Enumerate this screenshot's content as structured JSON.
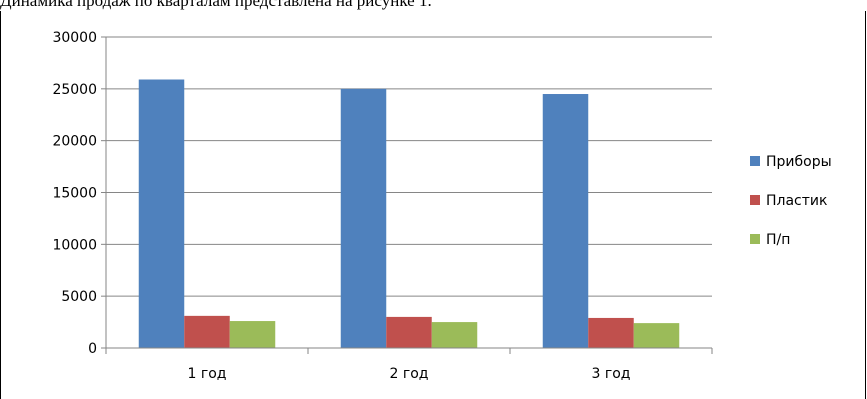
{
  "caption": "Динамика продаж по кварталам представлена на рисунке 1.",
  "chart_data": {
    "type": "bar",
    "title": "",
    "xlabel": "",
    "ylabel": "",
    "categories": [
      "1 год",
      "2 год",
      "3 год"
    ],
    "series": [
      {
        "name": "Приборы",
        "color": "#4F81BD",
        "values": [
          25900,
          25000,
          24500
        ]
      },
      {
        "name": "Пластик",
        "color": "#C0504D",
        "values": [
          3100,
          3000,
          2900
        ]
      },
      {
        "name": "П/п",
        "color": "#9BBB59",
        "values": [
          2600,
          2500,
          2400
        ]
      }
    ],
    "ylim": [
      0,
      30000
    ],
    "yticks": [
      0,
      5000,
      10000,
      15000,
      20000,
      25000,
      30000
    ],
    "grid": true,
    "legend_position": "right"
  }
}
